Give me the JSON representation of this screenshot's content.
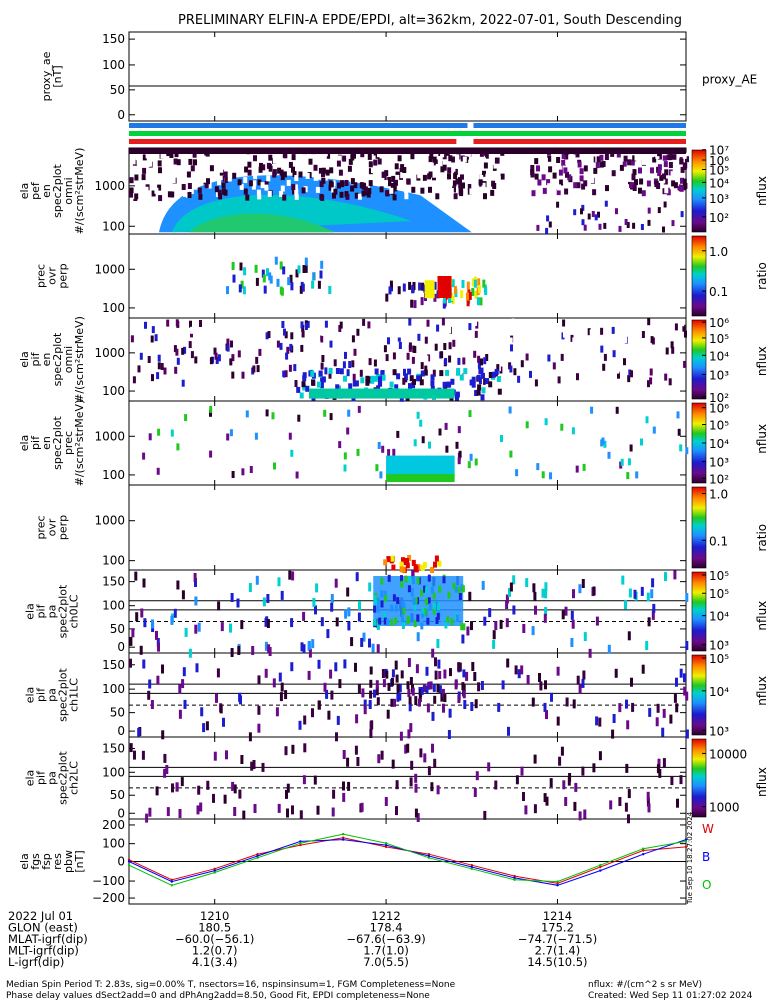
{
  "title": "PRELIMINARY ELFIN-A EPDE/EPDI, alt=362km, 2022-07-01, South Descending",
  "colors": {
    "series_w": "#e00000",
    "series_b": "#0000ff",
    "series_o": "#00c000",
    "bar_blue": "#1e78e6",
    "bar_green": "#00d23c",
    "bar_red": "#e61e1e"
  },
  "panels": [
    {
      "id": "proxy_ae",
      "ylabel": [
        "proxy_ae",
        "[nT]"
      ],
      "yticks": [
        "150",
        "100",
        "50",
        "0"
      ],
      "right_label": "proxy_AE"
    },
    {
      "id": "pef_omni",
      "ylabel": [
        "ela",
        "pef",
        "en",
        "spec2plot",
        "omni",
        "#/(scm²strMeV)"
      ],
      "yticks": [
        "1000",
        "100"
      ],
      "colorbar": {
        "ticks": [
          "10⁷",
          "10⁶",
          "10⁵",
          "10⁴",
          "10³",
          "10²"
        ],
        "label": "nflux"
      }
    },
    {
      "id": "pef_ratio",
      "ylabel": [
        "prec",
        "ovr",
        "perp"
      ],
      "yticks": [
        "1000",
        "100"
      ],
      "colorbar": {
        "ticks": [
          "1.0",
          "0.1"
        ],
        "label": "ratio"
      }
    },
    {
      "id": "pif_omni",
      "ylabel": [
        "ela",
        "pif",
        "en",
        "spec2plot",
        "omni",
        "#/(scm²strMeV)"
      ],
      "yticks": [
        "1000",
        "100"
      ],
      "colorbar": {
        "ticks": [
          "10⁶",
          "10⁵",
          "10⁴",
          "10³",
          "10²"
        ],
        "label": "nflux"
      }
    },
    {
      "id": "pif_prec",
      "ylabel": [
        "ela",
        "pif",
        "en",
        "spec2plot",
        "prec",
        "#/(scm²strMeV)"
      ],
      "yticks": [
        "1000",
        "100"
      ],
      "colorbar": {
        "ticks": [
          "10⁶",
          "10⁵",
          "10⁴",
          "10³",
          "10²"
        ],
        "label": "nflux"
      }
    },
    {
      "id": "pif_ratio",
      "ylabel": [
        "prec",
        "ovr",
        "perp"
      ],
      "yticks": [
        "1000",
        "100"
      ],
      "colorbar": {
        "ticks": [
          "1.0",
          "0.1"
        ],
        "label": "ratio"
      }
    },
    {
      "id": "pa_ch0",
      "ylabel": [
        "ela",
        "pif",
        "pa",
        "spec2plot",
        "ch0LC"
      ],
      "yticks": [
        "150",
        "100",
        "50",
        "0"
      ],
      "colorbar": {
        "ticks": [
          "10⁵",
          "10⁵",
          "10⁴",
          "10³"
        ],
        "label": "nflux"
      }
    },
    {
      "id": "pa_ch1",
      "ylabel": [
        "ela",
        "pif",
        "pa",
        "spec2plot",
        "ch1LC"
      ],
      "yticks": [
        "150",
        "100",
        "50",
        "0"
      ],
      "colorbar": {
        "ticks": [
          "10⁵",
          "10⁴",
          "10³"
        ],
        "label": "nflux"
      }
    },
    {
      "id": "pa_ch2",
      "ylabel": [
        "ela",
        "pif",
        "pa",
        "spec2plot",
        "ch2LC"
      ],
      "yticks": [
        "150",
        "100",
        "50",
        "0"
      ],
      "colorbar": {
        "ticks": [
          "10000",
          "1000"
        ],
        "label": "nflux"
      }
    },
    {
      "id": "fgs",
      "ylabel": [
        "ela",
        "fgs",
        "fsp",
        "res",
        "pbw",
        "[nT]"
      ],
      "yticks": [
        "200",
        "100",
        "0",
        "−100",
        "−200"
      ],
      "legend": [
        "W",
        "B",
        "O"
      ],
      "timestamp": "Tue Sep 10 18:27:02 2024"
    }
  ],
  "chart_data": {
    "type": "line",
    "title": "PRELIMINARY ELFIN-A EPDE/EPDI, alt=362km, 2022-07-01, South Descending",
    "x_range_min": [
      1209.0,
      1215.5
    ],
    "x_ticks": [
      "1210",
      "1212",
      "1214"
    ],
    "proxy_ae": {
      "ylim": [
        0,
        150
      ],
      "value": 57
    },
    "fgs": {
      "ylim": [
        -200,
        200
      ],
      "series": [
        {
          "name": "W",
          "x": [
            1209.0,
            1209.5,
            1210.0,
            1210.5,
            1211.0,
            1211.5,
            1212.0,
            1212.5,
            1213.0,
            1213.5,
            1214.0,
            1214.5,
            1215.0,
            1215.5
          ],
          "values": [
            10,
            -100,
            -40,
            40,
            90,
            130,
            80,
            40,
            -20,
            -80,
            -120,
            -30,
            60,
            80
          ]
        },
        {
          "name": "B",
          "x": [
            1209.0,
            1209.5,
            1210.0,
            1210.5,
            1211.0,
            1211.5,
            1212.0,
            1212.5,
            1213.0,
            1213.5,
            1214.0,
            1214.5,
            1215.0,
            1215.5
          ],
          "values": [
            0,
            -110,
            -50,
            30,
            110,
            120,
            90,
            30,
            -30,
            -90,
            -130,
            -50,
            40,
            120
          ]
        },
        {
          "name": "O",
          "x": [
            1209.0,
            1209.5,
            1210.0,
            1210.5,
            1211.0,
            1211.5,
            1212.0,
            1212.5,
            1213.0,
            1213.5,
            1214.0,
            1214.5,
            1215.0,
            1215.5
          ],
          "values": [
            -20,
            -130,
            -60,
            20,
            100,
            150,
            100,
            20,
            -40,
            -100,
            -110,
            -20,
            70,
            110
          ]
        }
      ]
    }
  },
  "bottom": {
    "rows": [
      {
        "label": "2022 Jul 01",
        "values": [
          "1210",
          "1212",
          "1214"
        ]
      },
      {
        "label": "GLON (east)",
        "values": [
          "180.5",
          "178.4",
          "175.2"
        ]
      },
      {
        "label": "MLAT-igrf(dip)",
        "values": [
          "−60.0(−56.1)",
          "−67.6(−63.9)",
          "−74.7(−71.5)"
        ]
      },
      {
        "label": "MLT-igrf(dip)",
        "values": [
          "1.2(0.7)",
          "1.7(1.0)",
          "2.7(1.4)"
        ]
      },
      {
        "label": "L-igrf(dip)",
        "values": [
          "4.1(3.4)",
          "7.0(5.5)",
          "14.5(10.5)"
        ]
      }
    ],
    "footer_left": [
      "Median Spin Period T: 2.83s, sig=0.00% T, nsectors=16, nspinsinsum=1, FGM Completeness=None",
      "Phase delay values dSect2add=0 and dPhAng2add=8.50, Good Fit, EPDI completeness=None"
    ],
    "footer_right": [
      "nflux: #/(cm^2 s sr MeV)",
      "Created: Wed Sep 11 01:27:02 2024"
    ]
  }
}
